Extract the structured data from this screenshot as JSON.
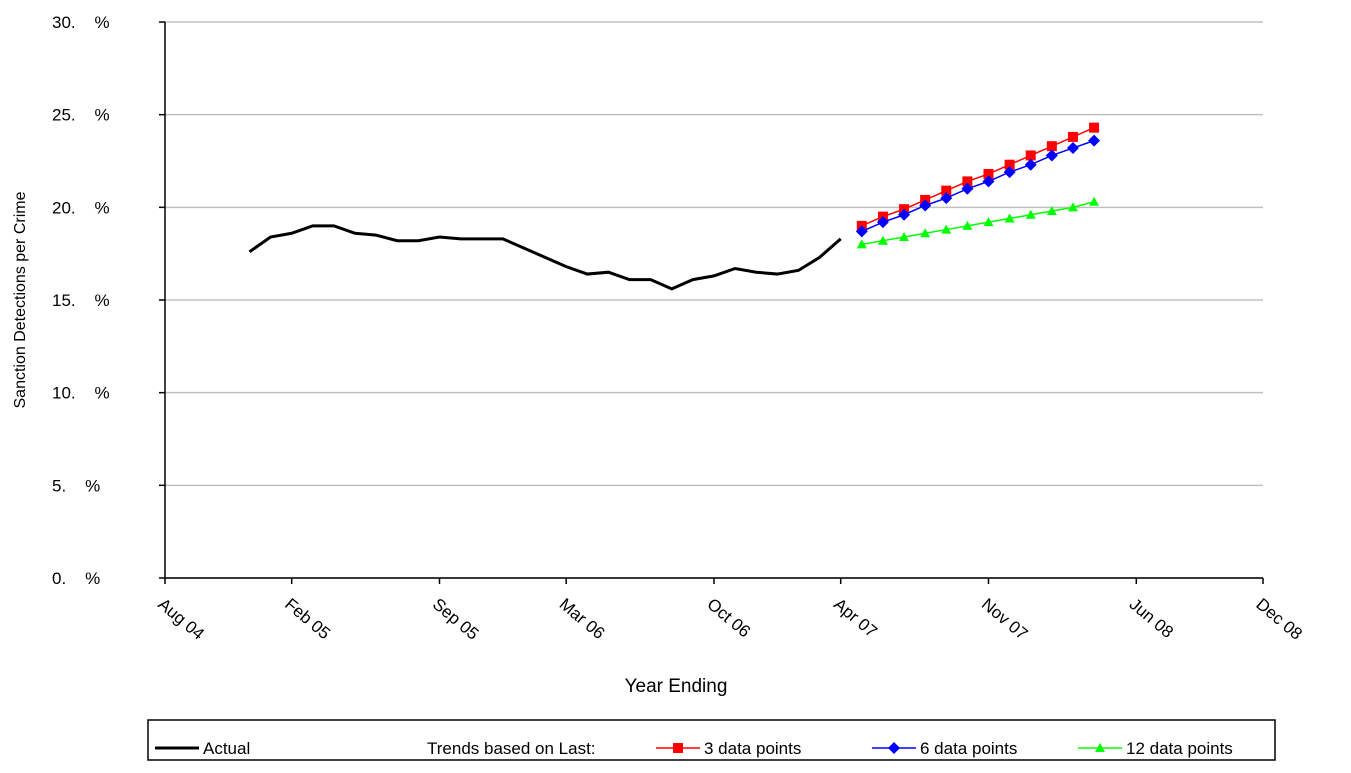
{
  "chart_data": {
    "type": "line",
    "y_label": "Sanction Detections per Crime",
    "x_label": "Year Ending",
    "xlim": [
      "2004-08",
      "2008-12"
    ],
    "xticks": [
      {
        "value": "2004-08",
        "label": "Aug 04"
      },
      {
        "value": "2005-02",
        "label": "Feb 05"
      },
      {
        "value": "2005-09",
        "label": "Sep 05"
      },
      {
        "value": "2006-03",
        "label": "Mar 06"
      },
      {
        "value": "2006-10",
        "label": "Oct 06"
      },
      {
        "value": "2007-04",
        "label": "Apr 07"
      },
      {
        "value": "2007-11",
        "label": "Nov 07"
      },
      {
        "value": "2008-06",
        "label": "Jun 08"
      },
      {
        "value": "2008-12",
        "label": "Dec 08"
      }
    ],
    "ylim": [
      0,
      30
    ],
    "yticks": [
      {
        "value": 0,
        "label": "0.    %"
      },
      {
        "value": 5,
        "label": "5.    %"
      },
      {
        "value": 10,
        "label": "10.    %"
      },
      {
        "value": 15,
        "label": "15.    %"
      },
      {
        "value": 20,
        "label": "20.    %"
      },
      {
        "value": 25,
        "label": "25.    %"
      },
      {
        "value": 30,
        "label": "30.    %"
      }
    ],
    "grid": true,
    "legend_position": "bottom",
    "legend_note": "Trends based on Last:",
    "series": [
      {
        "name": "Actual",
        "color": "#000000",
        "marker": "none",
        "x": [
          "2004-12",
          "2005-01",
          "2005-02",
          "2005-03",
          "2005-04",
          "2005-05",
          "2005-06",
          "2005-07",
          "2005-08",
          "2005-09",
          "2005-10",
          "2005-11",
          "2005-12",
          "2006-01",
          "2006-02",
          "2006-03",
          "2006-04",
          "2006-05",
          "2006-06",
          "2006-07",
          "2006-08",
          "2006-09",
          "2006-10",
          "2006-11",
          "2006-12",
          "2007-01",
          "2007-02",
          "2007-03",
          "2007-04"
        ],
        "values": [
          17.6,
          18.4,
          18.6,
          19.0,
          19.0,
          18.6,
          18.5,
          18.2,
          18.2,
          18.4,
          18.3,
          18.3,
          18.3,
          17.8,
          17.3,
          16.8,
          16.4,
          16.5,
          16.1,
          16.1,
          15.6,
          16.1,
          16.3,
          16.7,
          16.5,
          16.4,
          16.6,
          17.3,
          18.3
        ]
      },
      {
        "name": "3 data points",
        "color": "#ff0000",
        "marker": "square",
        "x": [
          "2007-05",
          "2007-06",
          "2007-07",
          "2007-08",
          "2007-09",
          "2007-10",
          "2007-11",
          "2007-12",
          "2008-01",
          "2008-02",
          "2008-03",
          "2008-04"
        ],
        "values": [
          19.0,
          19.5,
          19.9,
          20.4,
          20.9,
          21.4,
          21.8,
          22.3,
          22.8,
          23.3,
          23.8,
          24.3
        ]
      },
      {
        "name": "6 data points",
        "color": "#0000ff",
        "marker": "diamond",
        "x": [
          "2007-05",
          "2007-06",
          "2007-07",
          "2007-08",
          "2007-09",
          "2007-10",
          "2007-11",
          "2007-12",
          "2008-01",
          "2008-02",
          "2008-03",
          "2008-04"
        ],
        "values": [
          18.7,
          19.2,
          19.6,
          20.1,
          20.5,
          21.0,
          21.4,
          21.9,
          22.3,
          22.8,
          23.2,
          23.6
        ]
      },
      {
        "name": "12 data points",
        "color": "#00ff00",
        "marker": "triangle",
        "x": [
          "2007-05",
          "2007-06",
          "2007-07",
          "2007-08",
          "2007-09",
          "2007-10",
          "2007-11",
          "2007-12",
          "2008-01",
          "2008-02",
          "2008-03",
          "2008-04"
        ],
        "values": [
          18.0,
          18.2,
          18.4,
          18.6,
          18.8,
          19.0,
          19.2,
          19.4,
          19.6,
          19.8,
          20.0,
          20.3
        ]
      }
    ]
  }
}
